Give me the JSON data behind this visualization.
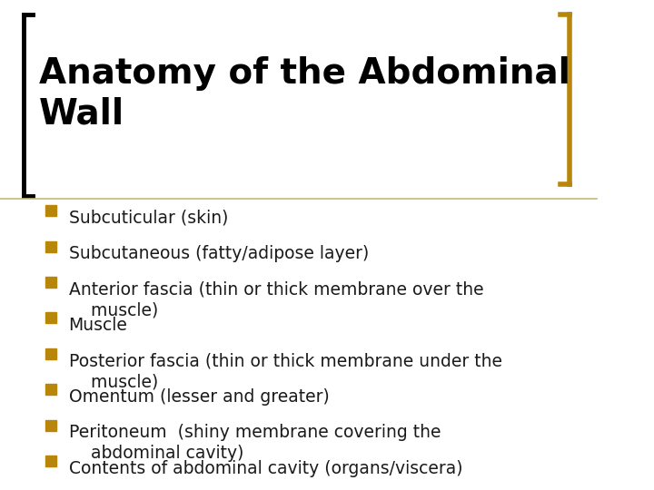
{
  "title": "Anatomy of the Abdominal\nWall",
  "title_fontsize": 28,
  "title_color": "#000000",
  "title_font": "DejaVu Sans",
  "bullet_color": "#B8860B",
  "text_color": "#1a1a1a",
  "bg_color": "#FFFFFF",
  "bracket_color": "#B8860B",
  "separator_color": "#C8B878",
  "bullet_items": [
    "Subcuticular (skin)",
    "Subcutaneous (fatty/adipose layer)",
    "Anterior fascia (thin or thick membrane over the\n    muscle)",
    "Muscle",
    "Posterior fascia (thin or thick membrane under the\n    muscle)",
    "Omentum (lesser and greater)",
    "Peritoneum  (shiny membrane covering the\n    abdominal cavity)",
    "Contents of abdominal cavity (organs/viscera)"
  ],
  "font_size": 13.5
}
